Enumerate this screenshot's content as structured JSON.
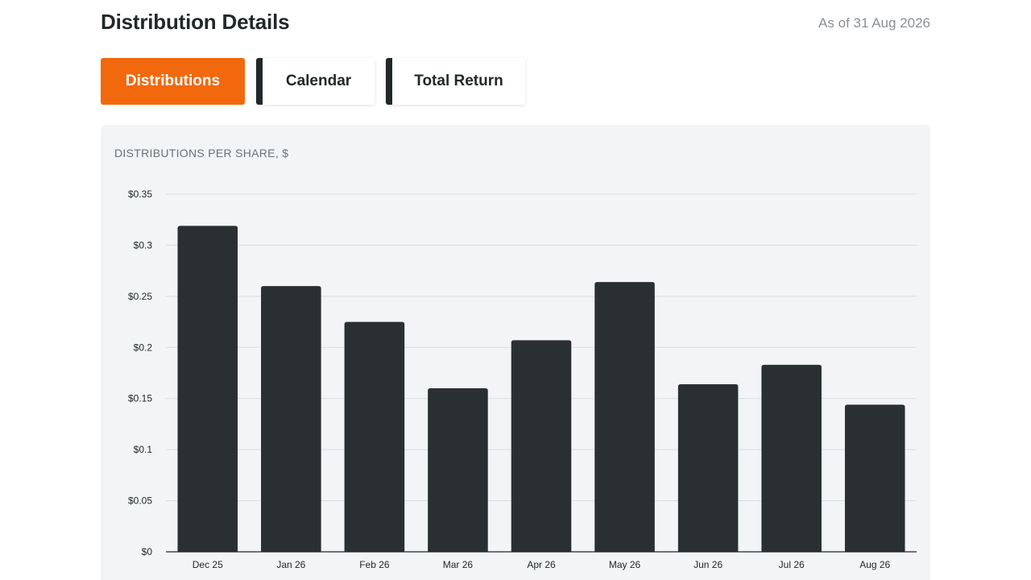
{
  "header": {
    "title": "Distribution Details",
    "as_of": "As of 31 Aug 2026"
  },
  "tabs": [
    {
      "label": "Distributions",
      "active": true
    },
    {
      "label": "Calendar",
      "active": false
    },
    {
      "label": "Total Return",
      "active": false
    }
  ],
  "colors": {
    "accent": "#f2680d",
    "bar": "#2a2f31",
    "card_background": "#f2f4f6"
  },
  "chart_data": {
    "type": "bar",
    "title": "DISTRIBUTIONS PER SHARE, $",
    "xlabel": "",
    "ylabel": "",
    "categories": [
      "Dec 25",
      "Jan 26",
      "Feb 26",
      "Mar 26",
      "Apr 26",
      "May 26",
      "Jun 26",
      "Jul 26",
      "Aug 26"
    ],
    "values": [
      0.319,
      0.26,
      0.225,
      0.16,
      0.207,
      0.264,
      0.164,
      0.183,
      0.144
    ],
    "ylim": [
      0,
      0.35
    ],
    "yticks": [
      0,
      0.05,
      0.1,
      0.15,
      0.2,
      0.25,
      0.3,
      0.35
    ],
    "ytick_labels": [
      "$0",
      "$0.05",
      "$0.1",
      "$0.15",
      "$0.2",
      "$0.25",
      "$0.3",
      "$0.35"
    ],
    "grid": true,
    "legend": false
  }
}
